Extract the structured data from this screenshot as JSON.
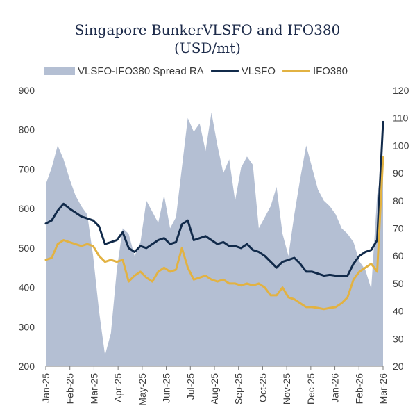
{
  "chart_data": {
    "type": "line",
    "title": "Singapore BunkerVLSFO and IFO380",
    "subtitle": "(USD/mt)",
    "ylim_left": [
      200,
      900
    ],
    "yticks_left": [
      900,
      800,
      700,
      600,
      500,
      400,
      300,
      200
    ],
    "ylim_right": [
      20,
      120
    ],
    "yticks_right": [
      120,
      110,
      100,
      90,
      80,
      70,
      60,
      50,
      40,
      30,
      20
    ],
    "xticks": [
      "Jan-25",
      "Feb-25",
      "Mar-25",
      "Apr-25",
      "May-25",
      "Jun-25",
      "Jul-25",
      "Aug-25",
      "Sep-25",
      "Oct-25",
      "Nov-25",
      "Dec-25",
      "Jan-26",
      "Feb-26",
      "Mar-26"
    ],
    "legend_position": "top",
    "grid": false,
    "series": [
      {
        "name": "VLSFO-IFO380 Spread RA",
        "axis": "right",
        "kind": "area",
        "color": "#b4bfd3",
        "x": [
          "Jan-25",
          "Jan-25",
          "Jan-25",
          "Jan-25",
          "Feb-25",
          "Feb-25",
          "Feb-25",
          "Feb-25",
          "Mar-25",
          "Mar-25",
          "Mar-25",
          "Mar-25",
          "Apr-25",
          "Apr-25",
          "Apr-25",
          "Apr-25",
          "May-25",
          "May-25",
          "May-25",
          "May-25",
          "Jun-25",
          "Jun-25",
          "Jun-25",
          "Jun-25",
          "Jul-25",
          "Jul-25",
          "Jul-25",
          "Jul-25",
          "Aug-25",
          "Aug-25",
          "Aug-25",
          "Aug-25",
          "Sep-25",
          "Sep-25",
          "Sep-25",
          "Sep-25",
          "Oct-25",
          "Oct-25",
          "Oct-25",
          "Oct-25",
          "Nov-25",
          "Nov-25",
          "Nov-25",
          "Nov-25",
          "Dec-25",
          "Dec-25",
          "Dec-25",
          "Dec-25",
          "Jan-26",
          "Jan-26",
          "Jan-26",
          "Jan-26",
          "Feb-26",
          "Feb-26",
          "Feb-26",
          "Feb-26",
          "Mar-26",
          "Mar-26"
        ],
        "values": [
          86,
          92,
          100,
          95,
          88,
          82,
          78,
          75,
          60,
          40,
          24,
          32,
          55,
          70,
          68,
          60,
          65,
          80,
          76,
          72,
          82,
          70,
          74,
          92,
          110,
          105,
          108,
          98,
          112,
          100,
          90,
          95,
          80,
          92,
          96,
          93,
          70,
          74,
          78,
          85,
          68,
          60,
          75,
          88,
          100,
          92,
          84,
          80,
          78,
          75,
          70,
          68,
          65,
          58,
          55,
          48,
          82,
          95
        ]
      },
      {
        "name": "VLSFO",
        "axis": "left",
        "kind": "line",
        "color": "#112a4a",
        "x": [
          "Jan-25",
          "Jan-25",
          "Jan-25",
          "Jan-25",
          "Feb-25",
          "Feb-25",
          "Feb-25",
          "Feb-25",
          "Mar-25",
          "Mar-25",
          "Mar-25",
          "Mar-25",
          "Apr-25",
          "Apr-25",
          "Apr-25",
          "Apr-25",
          "May-25",
          "May-25",
          "May-25",
          "May-25",
          "Jun-25",
          "Jun-25",
          "Jun-25",
          "Jun-25",
          "Jul-25",
          "Jul-25",
          "Jul-25",
          "Jul-25",
          "Aug-25",
          "Aug-25",
          "Aug-25",
          "Aug-25",
          "Sep-25",
          "Sep-25",
          "Sep-25",
          "Sep-25",
          "Oct-25",
          "Oct-25",
          "Oct-25",
          "Oct-25",
          "Nov-25",
          "Nov-25",
          "Nov-25",
          "Nov-25",
          "Dec-25",
          "Dec-25",
          "Dec-25",
          "Dec-25",
          "Jan-26",
          "Jan-26",
          "Jan-26",
          "Jan-26",
          "Feb-26",
          "Feb-26",
          "Feb-26",
          "Feb-26",
          "Mar-26",
          "Mar-26"
        ],
        "values": [
          562,
          570,
          595,
          612,
          600,
          590,
          580,
          575,
          570,
          555,
          510,
          515,
          520,
          540,
          500,
          490,
          505,
          500,
          510,
          520,
          525,
          510,
          515,
          560,
          570,
          520,
          525,
          530,
          520,
          510,
          515,
          505,
          505,
          500,
          510,
          495,
          490,
          480,
          465,
          450,
          465,
          470,
          475,
          460,
          440,
          440,
          435,
          430,
          432,
          430,
          430,
          430,
          460,
          480,
          490,
          495,
          520,
          820
        ]
      },
      {
        "name": "IFO380",
        "axis": "left",
        "kind": "line",
        "color": "#e2b242",
        "x": [
          "Jan-25",
          "Jan-25",
          "Jan-25",
          "Jan-25",
          "Feb-25",
          "Feb-25",
          "Feb-25",
          "Feb-25",
          "Mar-25",
          "Mar-25",
          "Mar-25",
          "Mar-25",
          "Apr-25",
          "Apr-25",
          "Apr-25",
          "Apr-25",
          "May-25",
          "May-25",
          "May-25",
          "May-25",
          "Jun-25",
          "Jun-25",
          "Jun-25",
          "Jun-25",
          "Jul-25",
          "Jul-25",
          "Jul-25",
          "Jul-25",
          "Aug-25",
          "Aug-25",
          "Aug-25",
          "Aug-25",
          "Sep-25",
          "Sep-25",
          "Sep-25",
          "Sep-25",
          "Oct-25",
          "Oct-25",
          "Oct-25",
          "Oct-25",
          "Nov-25",
          "Nov-25",
          "Nov-25",
          "Nov-25",
          "Dec-25",
          "Dec-25",
          "Dec-25",
          "Dec-25",
          "Jan-26",
          "Jan-26",
          "Jan-26",
          "Jan-26",
          "Feb-26",
          "Feb-26",
          "Feb-26",
          "Feb-26",
          "Mar-26",
          "Mar-26"
        ],
        "values": [
          470,
          475,
          510,
          520,
          515,
          510,
          505,
          510,
          505,
          480,
          465,
          470,
          465,
          470,
          415,
          430,
          440,
          425,
          415,
          440,
          450,
          440,
          445,
          500,
          450,
          420,
          425,
          430,
          420,
          415,
          420,
          410,
          410,
          405,
          410,
          405,
          410,
          400,
          380,
          380,
          400,
          375,
          370,
          360,
          350,
          350,
          348,
          345,
          348,
          350,
          360,
          375,
          420,
          440,
          450,
          460,
          440,
          730
        ]
      }
    ]
  }
}
